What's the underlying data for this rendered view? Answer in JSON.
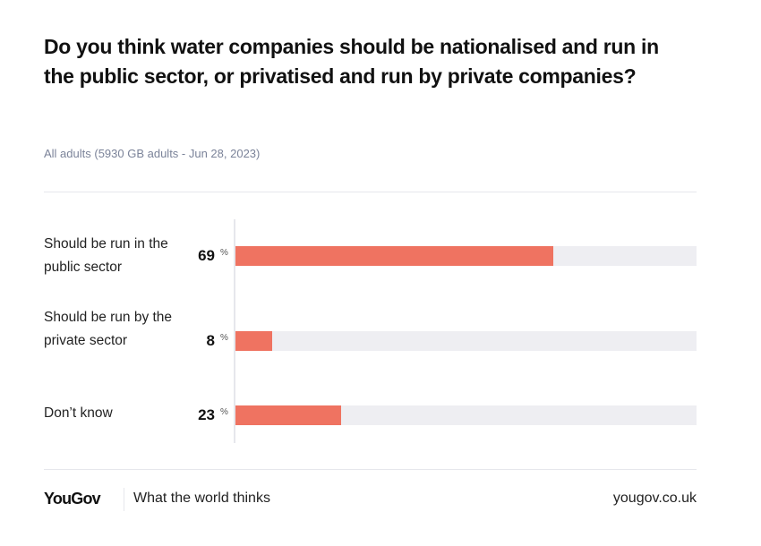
{
  "chart_data": {
    "type": "bar",
    "orientation": "horizontal",
    "title": "Do you think water companies should be nationalised and run in the public sector, or privatised and run by private companies?",
    "subtitle": "All adults (5930 GB adults - Jun 28, 2023)",
    "categories": [
      "Should be run in the public sector",
      "Should be run by the private sector",
      "Don’t know"
    ],
    "values": [
      69,
      8,
      23
    ],
    "value_labels": [
      "69",
      "8",
      "23"
    ],
    "unit": "%",
    "xlim": [
      0,
      100
    ],
    "colors": {
      "bar": "#ef7361",
      "track": "#eeeef2"
    }
  },
  "footer": {
    "logo": "YouGov",
    "tagline": "What the world thinks",
    "site": "yougov.co.uk"
  }
}
